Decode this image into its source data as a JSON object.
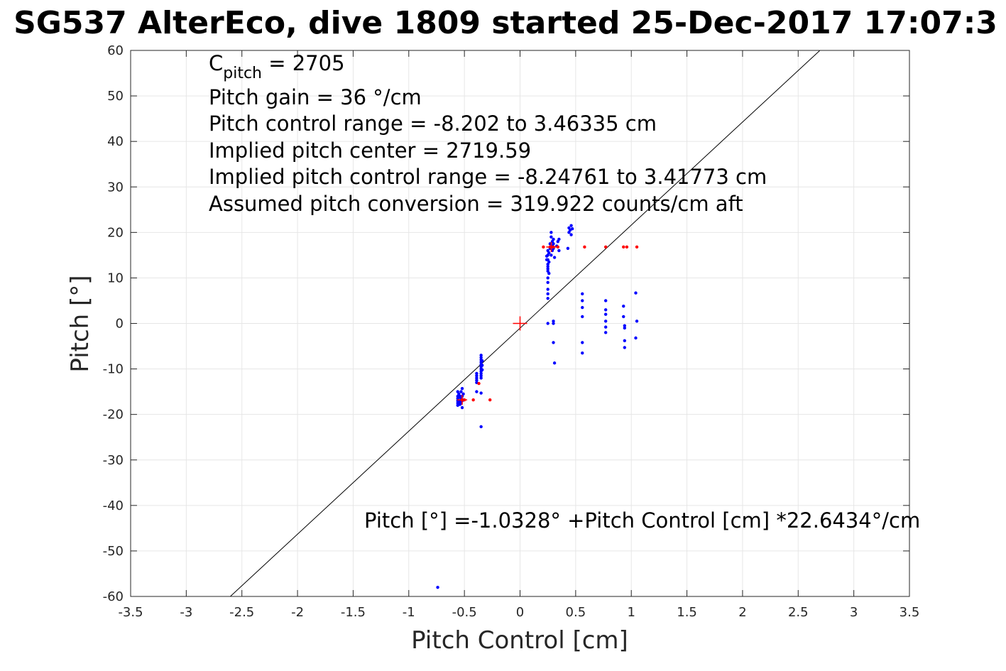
{
  "chart_data": {
    "type": "scatter",
    "title": "SG537 AlterEco, dive 1809 started 25-Dec-2017 17:07:3",
    "xlabel": "Pitch Control [cm]",
    "ylabel": "Pitch [°]",
    "xlim": [
      -3.5,
      3.5
    ],
    "ylim": [
      -60,
      60
    ],
    "xticks": [
      -3.5,
      -3,
      -2.5,
      -2,
      -1.5,
      -1,
      -0.5,
      0,
      0.5,
      1,
      1.5,
      2,
      2.5,
      3,
      3.5
    ],
    "xtick_labels": [
      "-3.5",
      "-3",
      "-2.5",
      "-2",
      "-1.5",
      "-1",
      "-0.5",
      "0",
      "0.5",
      "1",
      "1.5",
      "2",
      "2.5",
      "3",
      "3.5"
    ],
    "yticks": [
      -60,
      -50,
      -40,
      -30,
      -20,
      -10,
      0,
      10,
      20,
      30,
      40,
      50,
      60
    ],
    "ytick_labels": [
      "-60",
      "-50",
      "-40",
      "-30",
      "-20",
      "-10",
      "0",
      "10",
      "20",
      "30",
      "40",
      "50",
      "60"
    ],
    "grid": true,
    "colors": {
      "series_1": "#0000ff",
      "series_2": "#ff0000",
      "fit_line": "#000000",
      "grid": "#e6e6e6"
    },
    "series": [
      {
        "marker": "dot",
        "color": "#0000ff",
        "points": [
          [
            -0.56,
            -15.0
          ],
          [
            -0.56,
            -16.0
          ],
          [
            -0.56,
            -16.5
          ],
          [
            -0.56,
            -17.0
          ],
          [
            -0.56,
            -17.5
          ],
          [
            -0.56,
            -18.0
          ],
          [
            -0.55,
            -15.5
          ],
          [
            -0.55,
            -16.2
          ],
          [
            -0.55,
            -17.2
          ],
          [
            -0.54,
            -16.0
          ],
          [
            -0.54,
            -17.0
          ],
          [
            -0.54,
            -17.8
          ],
          [
            -0.53,
            -15.0
          ],
          [
            -0.53,
            -16.5
          ],
          [
            -0.53,
            -17.5
          ],
          [
            -0.52,
            -14.3
          ],
          [
            -0.52,
            -16.0
          ],
          [
            -0.52,
            -17.0
          ],
          [
            -0.52,
            -18.5
          ],
          [
            -0.51,
            -15.5
          ],
          [
            -0.51,
            -16.8
          ],
          [
            -0.39,
            -11.0
          ],
          [
            -0.39,
            -11.5
          ],
          [
            -0.39,
            -12.0
          ],
          [
            -0.39,
            -12.5
          ],
          [
            -0.39,
            -13.0
          ],
          [
            -0.39,
            -15.0
          ],
          [
            -0.35,
            -7.0
          ],
          [
            -0.35,
            -7.5
          ],
          [
            -0.35,
            -8.0
          ],
          [
            -0.35,
            -8.5
          ],
          [
            -0.35,
            -9.0
          ],
          [
            -0.35,
            -9.5
          ],
          [
            -0.35,
            -10.0
          ],
          [
            -0.35,
            -10.5
          ],
          [
            -0.35,
            -11.0
          ],
          [
            -0.35,
            -11.5
          ],
          [
            -0.35,
            -12.0
          ],
          [
            -0.35,
            -15.3
          ],
          [
            -0.34,
            -8.2
          ],
          [
            -0.34,
            -9.2
          ],
          [
            -0.34,
            -10.2
          ],
          [
            -0.35,
            -22.7
          ],
          [
            0.24,
            14.0
          ],
          [
            0.24,
            14.8
          ],
          [
            0.25,
            5.5
          ],
          [
            0.25,
            6.5
          ],
          [
            0.25,
            7.5
          ],
          [
            0.25,
            9.0
          ],
          [
            0.25,
            10.0
          ],
          [
            0.25,
            11.5
          ],
          [
            0.25,
            12.0
          ],
          [
            0.25,
            12.5
          ],
          [
            0.25,
            13.0
          ],
          [
            0.25,
            14.0
          ],
          [
            0.25,
            15.0
          ],
          [
            0.25,
            16.0
          ],
          [
            0.26,
            11.0
          ],
          [
            0.26,
            13.5
          ],
          [
            0.26,
            15.5
          ],
          [
            0.27,
            16.5
          ],
          [
            0.27,
            17.5
          ],
          [
            0.28,
            15.0
          ],
          [
            0.28,
            19.0
          ],
          [
            0.28,
            20.0
          ],
          [
            0.29,
            16.0
          ],
          [
            0.29,
            17.0
          ],
          [
            0.29,
            18.0
          ],
          [
            0.3,
            16.5
          ],
          [
            0.3,
            17.5
          ],
          [
            0.3,
            18.5
          ],
          [
            0.31,
            14.5
          ],
          [
            0.33,
            17.0
          ],
          [
            0.34,
            18.0
          ],
          [
            0.35,
            18.5
          ],
          [
            0.35,
            16.0
          ],
          [
            0.44,
            20.0
          ],
          [
            0.44,
            21.0
          ],
          [
            0.45,
            20.5
          ],
          [
            0.46,
            21.5
          ],
          [
            0.46,
            19.5
          ],
          [
            0.47,
            20.8
          ],
          [
            0.43,
            16.5
          ],
          [
            0.25,
            0.0
          ],
          [
            0.3,
            0.5
          ],
          [
            0.3,
            0.0
          ],
          [
            0.3,
            -4.2
          ],
          [
            0.31,
            -8.7
          ],
          [
            0.56,
            6.5
          ],
          [
            0.56,
            5.0
          ],
          [
            0.56,
            3.5
          ],
          [
            0.56,
            1.5
          ],
          [
            0.56,
            -4.2
          ],
          [
            0.56,
            -6.5
          ],
          [
            0.77,
            5.0
          ],
          [
            0.77,
            3.0
          ],
          [
            0.77,
            2.0
          ],
          [
            0.77,
            0.5
          ],
          [
            0.77,
            -0.8
          ],
          [
            0.77,
            -2.0
          ],
          [
            0.93,
            3.8
          ],
          [
            0.93,
            1.5
          ],
          [
            0.94,
            -0.5
          ],
          [
            0.94,
            -1.0
          ],
          [
            0.94,
            -3.8
          ],
          [
            0.94,
            -5.3
          ],
          [
            1.04,
            6.7
          ],
          [
            1.05,
            0.5
          ],
          [
            1.04,
            -3.2
          ],
          [
            -0.74,
            -58.0
          ]
        ]
      },
      {
        "marker": "dot",
        "color": "#ff0000",
        "points": [
          [
            -0.52,
            -16.8
          ],
          [
            -0.5,
            -16.8
          ],
          [
            -0.42,
            -16.8
          ],
          [
            -0.37,
            -13.2
          ],
          [
            -0.27,
            -16.8
          ],
          [
            0.21,
            16.8
          ],
          [
            0.27,
            16.8
          ],
          [
            0.28,
            16.8
          ],
          [
            0.3,
            16.8
          ],
          [
            0.34,
            16.8
          ],
          [
            0.58,
            16.8
          ],
          [
            0.77,
            16.8
          ],
          [
            0.93,
            16.8
          ],
          [
            0.96,
            16.8
          ],
          [
            1.05,
            16.8
          ]
        ]
      }
    ],
    "markers": [
      {
        "kind": "plus",
        "color": "#ff0000",
        "x": 0.0,
        "y": 0.0
      },
      {
        "kind": "plus",
        "color": "#ff0000",
        "x": -0.52,
        "y": -16.8
      },
      {
        "kind": "plus",
        "color": "#ff0000",
        "x": 0.28,
        "y": 16.8
      }
    ],
    "fit_line": {
      "intercept": -1.0328,
      "slope": 22.6434,
      "color": "#000000"
    },
    "annotations": {
      "cpitch_base": "C",
      "cpitch_sub": "pitch",
      "cpitch_value": " = 2705",
      "pitch_gain": "Pitch gain = 36 °/cm",
      "pitch_control_range": "Pitch control range = -8.202 to 3.46335 cm",
      "implied_center": "Implied pitch center = 2719.59",
      "implied_range": "Implied pitch control range = -8.24761 to 3.41773 cm",
      "assumed_conversion": "Assumed pitch conversion = 319.922 counts/cm aft",
      "fit_equation": "Pitch [°] =-1.0328° +Pitch Control [cm] *22.6434°/cm"
    }
  }
}
